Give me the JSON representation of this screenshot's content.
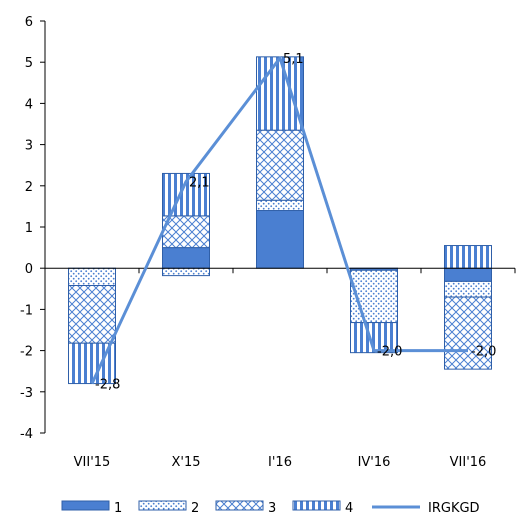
{
  "chart_data": {
    "type": "bar",
    "stacked": true,
    "categories": [
      "VII'15",
      "X'15",
      "I'16",
      "IV'16",
      "VII'16"
    ],
    "series": [
      {
        "name": "1",
        "values": [
          0,
          0.5,
          1.4,
          -0.05,
          -0.32
        ],
        "color": "#4a7fd1",
        "pattern": "solid"
      },
      {
        "name": "2",
        "values": [
          -0.42,
          -0.18,
          0.25,
          -1.27,
          -0.38
        ],
        "color": "#4a7fd1",
        "pattern": "dots"
      },
      {
        "name": "3",
        "values": [
          -1.4,
          0.77,
          1.7,
          0,
          -1.75
        ],
        "color": "#4a7fd1",
        "pattern": "crosshatch"
      },
      {
        "name": "4",
        "values": [
          -0.98,
          1.03,
          1.78,
          -0.73,
          0.55
        ],
        "color": "#4a7fd1",
        "pattern": "vertical"
      }
    ],
    "line": {
      "name": "IRGKGD",
      "values": [
        -2.8,
        2.1,
        5.1,
        -2.0,
        -2.0
      ],
      "labels": [
        "-2,8",
        "2,1",
        "5,1",
        "-2,0",
        "-2,0"
      ],
      "color": "#5b8fd6"
    },
    "ylim": [
      -4,
      6
    ],
    "yticks": [
      -4,
      -3,
      -2,
      -1,
      0,
      1,
      2,
      3,
      4,
      5,
      6
    ],
    "grid": false,
    "legend": "bottom"
  }
}
